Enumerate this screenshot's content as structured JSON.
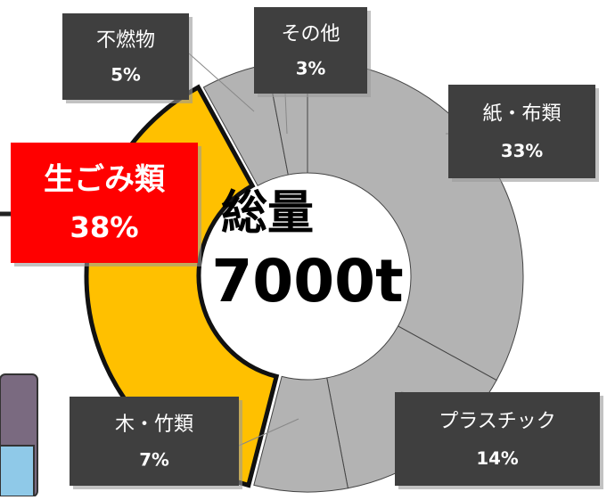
{
  "chart_data": {
    "type": "donut",
    "center_title": "総量",
    "center_total": "7000t",
    "categories": [
      "紙・布類",
      "プラスチック",
      "木・竹類",
      "生ごみ類",
      "不燃物",
      "その他"
    ],
    "values": [
      33,
      14,
      7,
      38,
      5,
      3
    ],
    "value_labels": [
      "33%",
      "14%",
      "7%",
      "38%",
      "5%",
      "3%"
    ],
    "colors": [
      "#b3b3b3",
      "#b3b3b3",
      "#b3b3b3",
      "#ffc000",
      "#b3b3b3",
      "#b3b3b3"
    ],
    "highlight_color": "#ff0000"
  }
}
